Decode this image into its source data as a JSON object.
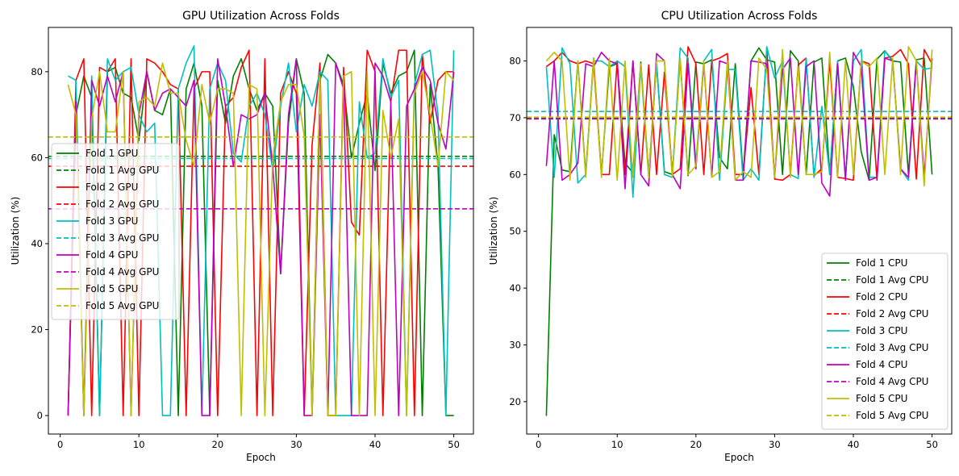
{
  "chart_data": [
    {
      "type": "line",
      "title": "GPU Utilization Across Folds",
      "xlabel": "Epoch",
      "ylabel": "Utilization (%)",
      "xlim": [
        -1.5,
        52.5
      ],
      "ylim": [
        -4.3,
        90.3
      ],
      "xticks": [
        0,
        10,
        20,
        30,
        40,
        50
      ],
      "yticks": [
        0,
        20,
        40,
        60,
        80
      ],
      "legend_position": "center-left",
      "series": [
        {
          "name": "Fold 1 GPU",
          "style": "solid",
          "color": "#008000",
          "values": [
            0,
            70,
            79,
            74,
            0,
            80,
            81,
            75,
            74,
            64,
            80,
            71,
            70,
            76,
            0,
            76,
            82,
            72,
            0,
            78,
            68,
            79,
            83,
            76,
            71,
            75,
            72,
            33,
            68,
            83,
            75,
            0,
            78,
            84,
            82,
            77,
            60,
            68,
            75,
            57,
            82,
            75,
            79,
            80,
            85,
            0,
            77,
            58,
            0,
            0
          ]
        },
        {
          "name": "Fold 1 Avg GPU",
          "style": "dashed",
          "color": "#008000",
          "value": 60.3
        },
        {
          "name": "Fold 2 GPU",
          "style": "solid",
          "color": "#ff0000",
          "values": [
            0,
            78,
            83,
            0,
            81,
            80,
            83,
            0,
            83,
            0,
            83,
            82,
            80,
            77,
            76,
            0,
            76,
            80,
            80,
            0,
            72,
            74,
            81,
            85,
            0,
            83,
            0,
            75,
            80,
            75,
            0,
            63,
            82,
            0,
            0,
            81,
            45,
            42,
            85,
            80,
            0,
            73,
            85,
            85,
            0,
            84,
            68,
            78,
            80,
            80
          ]
        },
        {
          "name": "Fold 2 Avg GPU",
          "style": "dashed",
          "color": "#ff0000",
          "value": 58.0
        },
        {
          "name": "Fold 3 GPU",
          "style": "solid",
          "color": "#00bfbf",
          "values": [
            79,
            78,
            0,
            79,
            0,
            83,
            78,
            80,
            81,
            70,
            66,
            68,
            0,
            0,
            76,
            82,
            86,
            0,
            76,
            82,
            78,
            61,
            59,
            72,
            75,
            70,
            57,
            72,
            82,
            66,
            77,
            72,
            80,
            78,
            0,
            0,
            0,
            73,
            60,
            61,
            83,
            74,
            78,
            0,
            77,
            84,
            85,
            70,
            0,
            85
          ]
        },
        {
          "name": "Fold 3 Avg GPU",
          "style": "dashed",
          "color": "#00bfbf",
          "value": 59.8
        },
        {
          "name": "Fold 4 GPU",
          "style": "solid",
          "color": "#bf00bf",
          "values": [
            0,
            73,
            0,
            78,
            72,
            79,
            73,
            80,
            0,
            70,
            80,
            71,
            75,
            76,
            74,
            72,
            78,
            0,
            0,
            83,
            72,
            58,
            70,
            69,
            70,
            75,
            58,
            33,
            70,
            83,
            0,
            0,
            70,
            0,
            82,
            76,
            0,
            0,
            0,
            82,
            79,
            73,
            0,
            72,
            76,
            81,
            78,
            68,
            62,
            80
          ]
        },
        {
          "name": "Fold 4 Avg GPU",
          "style": "dashed",
          "color": "#bf00bf",
          "value": 48.1
        },
        {
          "name": "Fold 5 GPU",
          "style": "solid",
          "color": "#bfbf00",
          "values": [
            77,
            70,
            0,
            69,
            80,
            66,
            66,
            80,
            0,
            73,
            74,
            72,
            82,
            75,
            75,
            64,
            58,
            77,
            68,
            76,
            76,
            75,
            0,
            77,
            76,
            0,
            60,
            73,
            77,
            77,
            65,
            0,
            79,
            0,
            0,
            79,
            80,
            0,
            80,
            0,
            71,
            60,
            69,
            0,
            75,
            80,
            70,
            58,
            80,
            78
          ]
        },
        {
          "name": "Fold 5 Avg GPU",
          "style": "dashed",
          "color": "#bfbf00",
          "value": 64.8
        }
      ]
    },
    {
      "type": "line",
      "title": "CPU Utilization Across Folds",
      "xlabel": "Epoch",
      "ylabel": "Utilization (%)",
      "xlim": [
        -1.5,
        52.5
      ],
      "ylim": [
        14.3,
        85.9
      ],
      "xticks": [
        0,
        10,
        20,
        30,
        40,
        50
      ],
      "yticks": [
        20,
        30,
        40,
        50,
        60,
        70,
        80
      ],
      "legend_position": "lower right",
      "series": [
        {
          "name": "Fold 1 CPU",
          "style": "solid",
          "color": "#008000",
          "values": [
            17.5,
            67.0,
            60.8,
            60.5,
            80.0,
            60.0,
            80.5,
            60.0,
            79.0,
            79.5,
            62.0,
            60.3,
            79.8,
            60.0,
            79.5,
            60.5,
            60.0,
            80.2,
            59.8,
            79.8,
            79.5,
            80.2,
            63.0,
            61.0,
            79.5,
            60.0,
            80.0,
            82.3,
            80.2,
            79.8,
            60.0,
            81.8,
            80.0,
            60.0,
            79.8,
            80.5,
            60.0,
            80.0,
            80.5,
            75.5,
            64.0,
            59.0,
            80.3,
            81.8,
            80.0,
            79.8,
            60.0,
            80.2,
            80.5,
            60.0
          ]
        },
        {
          "name": "Fold 1 Avg CPU",
          "style": "dashed",
          "color": "#008000",
          "value": 69.9
        },
        {
          "name": "Fold 2 CPU",
          "style": "solid",
          "color": "#ff0000",
          "values": [
            79.0,
            80.0,
            81.5,
            80.0,
            79.5,
            80.0,
            79.5,
            60.0,
            60.0,
            80.0,
            60.0,
            80.0,
            60.0,
            79.3,
            60.0,
            78.0,
            60.0,
            61.0,
            82.5,
            79.5,
            60.0,
            80.0,
            80.5,
            81.3,
            60.0,
            60.0,
            75.3,
            60.0,
            82.0,
            59.2,
            59.0,
            60.0,
            79.3,
            80.5,
            59.8,
            61.0,
            80.0,
            59.5,
            59.3,
            59.0,
            80.0,
            79.5,
            59.0,
            80.5,
            80.8,
            82.0,
            79.5,
            59.2,
            82.0,
            79.5
          ]
        },
        {
          "name": "Fold 2 Avg CPU",
          "style": "dashed",
          "color": "#ff0000",
          "value": 69.8
        },
        {
          "name": "Fold 3 CPU",
          "style": "solid",
          "color": "#00bfbf",
          "values": [
            79.0,
            59.5,
            82.3,
            79.5,
            58.5,
            60.0,
            80.0,
            80.0,
            79.0,
            80.0,
            79.0,
            56.0,
            79.0,
            59.5,
            79.5,
            60.0,
            59.5,
            82.3,
            80.5,
            62.0,
            80.0,
            82.0,
            59.0,
            78.5,
            78.5,
            59.0,
            61.0,
            59.0,
            82.5,
            77.0,
            80.0,
            60.0,
            59.3,
            80.5,
            59.5,
            72.0,
            60.0,
            80.0,
            59.5,
            80.0,
            82.0,
            59.5,
            59.5,
            81.8,
            79.8,
            61.0,
            59.0,
            80.0,
            78.5,
            78.8
          ]
        },
        {
          "name": "Fold 3 Avg CPU",
          "style": "dashed",
          "color": "#00bfbf",
          "value": 71.1
        },
        {
          "name": "Fold 4 CPU",
          "style": "solid",
          "color": "#bf00bf",
          "values": [
            61.5,
            80.0,
            59.0,
            60.0,
            62.0,
            79.5,
            79.0,
            81.5,
            80.0,
            79.5,
            57.5,
            80.0,
            60.0,
            58.0,
            81.3,
            80.0,
            60.0,
            57.5,
            79.5,
            61.0,
            79.5,
            59.5,
            80.0,
            79.5,
            59.0,
            59.0,
            80.0,
            79.8,
            79.5,
            59.5,
            78.5,
            80.5,
            60.0,
            79.0,
            80.0,
            58.5,
            56.2,
            79.5,
            59.0,
            81.5,
            79.0,
            59.0,
            59.5,
            80.5,
            80.0,
            61.0,
            59.5,
            80.0,
            59.5,
            80.5
          ]
        },
        {
          "name": "Fold 4 Avg CPU",
          "style": "dashed",
          "color": "#bf00bf",
          "value": 69.8
        },
        {
          "name": "Fold 5 CPU",
          "style": "solid",
          "color": "#bfbf00",
          "values": [
            80.0,
            81.5,
            80.0,
            59.0,
            80.0,
            59.5,
            80.5,
            59.5,
            80.5,
            59.0,
            80.0,
            59.5,
            79.5,
            59.5,
            80.0,
            80.0,
            59.5,
            80.5,
            60.0,
            61.5,
            80.0,
            59.5,
            60.5,
            80.0,
            59.0,
            60.5,
            59.5,
            80.5,
            78.5,
            59.5,
            82.0,
            59.5,
            79.0,
            60.0,
            60.0,
            60.5,
            81.5,
            59.5,
            80.0,
            60.0,
            80.0,
            79.0,
            80.5,
            60.0,
            80.5,
            60.0,
            82.5,
            80.0,
            58.0,
            82.0
          ]
        },
        {
          "name": "Fold 5 Avg CPU",
          "style": "dashed",
          "color": "#bfbf00",
          "value": 70.1
        }
      ]
    }
  ]
}
